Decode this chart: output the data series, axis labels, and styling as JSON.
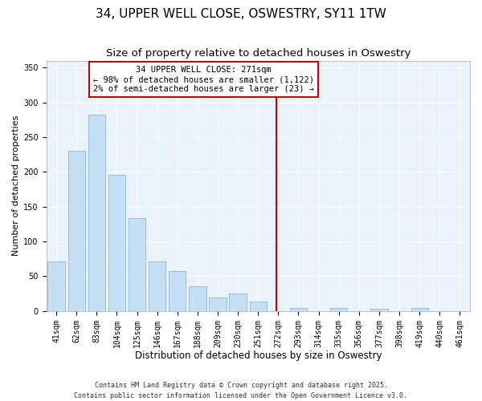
{
  "title": "34, UPPER WELL CLOSE, OSWESTRY, SY11 1TW",
  "subtitle": "Size of property relative to detached houses in Oswestry",
  "xlabel": "Distribution of detached houses by size in Oswestry",
  "ylabel": "Number of detached properties",
  "bar_labels": [
    "41sqm",
    "62sqm",
    "83sqm",
    "104sqm",
    "125sqm",
    "146sqm",
    "167sqm",
    "188sqm",
    "209sqm",
    "230sqm",
    "251sqm",
    "272sqm",
    "293sqm",
    "314sqm",
    "335sqm",
    "356sqm",
    "377sqm",
    "398sqm",
    "419sqm",
    "440sqm",
    "461sqm"
  ],
  "bar_values": [
    71,
    230,
    282,
    196,
    133,
    71,
    57,
    35,
    19,
    25,
    14,
    0,
    4,
    0,
    4,
    0,
    3,
    0,
    5,
    0,
    0
  ],
  "bar_color": "#c5dff5",
  "bar_edge_color": "#8db8d8",
  "vline_index": 11,
  "vline_color": "#cc0000",
  "annotation_line1": "34 UPPER WELL CLOSE: 271sqm",
  "annotation_line2": "← 98% of detached houses are smaller (1,122)",
  "annotation_line3": "2% of semi-detached houses are larger (23) →",
  "annotation_box_color": "#ffffff",
  "annotation_box_edge": "#cc0000",
  "ylim": [
    0,
    360
  ],
  "yticks": [
    0,
    50,
    100,
    150,
    200,
    250,
    300,
    350
  ],
  "bg_color": "#eaf2fb",
  "grid_color": "#ffffff",
  "footer_line1": "Contains HM Land Registry data © Crown copyright and database right 2025.",
  "footer_line2": "Contains public sector information licensed under the Open Government Licence v3.0.",
  "title_fontsize": 11,
  "subtitle_fontsize": 9.5,
  "xlabel_fontsize": 8.5,
  "ylabel_fontsize": 8,
  "tick_fontsize": 7,
  "annotation_fontsize": 7.5,
  "footer_fontsize": 6
}
